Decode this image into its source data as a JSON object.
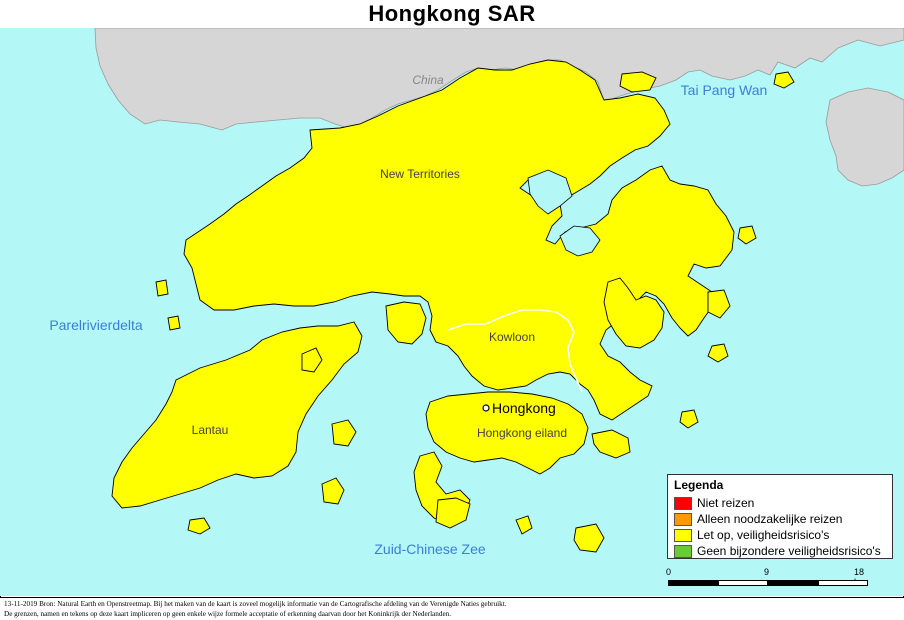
{
  "title": "Hongkong SAR",
  "colors": {
    "sea": "#b3f7f7",
    "land_neighbor": "#d6d6d6",
    "land_hk": "#ffff00",
    "border": "#000000",
    "water_label": "#3c7fd6"
  },
  "labels": {
    "china": "China",
    "tai_pang_wan": "Tai Pang Wan",
    "new_territories": "New Territories",
    "parelrivierdelta": "Parelrivierdelta",
    "kowloon": "Kowloon",
    "lantau": "Lantau",
    "hongkong_city": "Hongkong",
    "hongkong_eiland": "Hongkong eiland",
    "zuid_chinese_zee": "Zuid-Chinese Zee"
  },
  "legend": {
    "title": "Legenda",
    "items": [
      {
        "label": "Niet reizen",
        "color": "#ff0000"
      },
      {
        "label": "Alleen noodzakelijke reizen",
        "color": "#ff9900"
      },
      {
        "label": "Let op, veiligheidsrisico's",
        "color": "#ffff00"
      },
      {
        "label": "Geen bijzondere veiligheidsrisico's",
        "color": "#66cc33"
      }
    ]
  },
  "scale": {
    "labels": [
      "0",
      "9",
      "18 km"
    ]
  },
  "footer": {
    "line1": "13-11-2019 Bron: Natural Earth en Openstreetmap. Bij het maken van de kaart is zoveel mogelijk informatie van de Cartografische afdeling van de Verenigde Naties gebruikt.",
    "line2": "De grenzen, namen en tekens op deze kaart impliceren op geen enkele wijze formele acceptatie of erkenning daarvan door het Koninkrijk der Nederlanden."
  }
}
